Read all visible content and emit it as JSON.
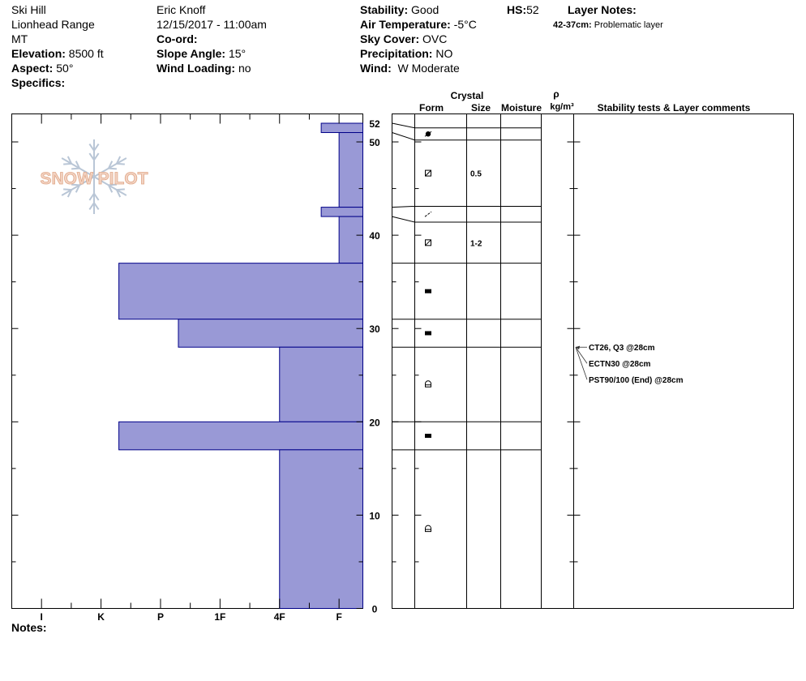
{
  "header": {
    "col1": {
      "location": "Ski Hill",
      "range": "Lionhead Range",
      "state": "MT",
      "elevation_label": "Elevation:",
      "elevation": "8500 ft",
      "aspect_label": "Aspect:",
      "aspect": "50°",
      "specifics_label": "Specifics:"
    },
    "col2": {
      "observer": "Eric Knoff",
      "datetime": "12/15/2017 - 11:00am",
      "coord_label": "Co-ord:",
      "slope_label": "Slope Angle:",
      "slope": "15°",
      "wind_loading_label": "Wind Loading:",
      "wind_loading": "no"
    },
    "col3": {
      "stability_label": "Stability:",
      "stability": "Good",
      "air_temp_label": "Air Temperature:",
      "air_temp": "-5°C",
      "sky_label": "Sky Cover:",
      "sky": "OVC",
      "precip_label": "Precipitation:",
      "precip": "NO",
      "wind_label": "Wind:",
      "wind": "W Moderate"
    },
    "hs_label": "HS:",
    "hs": "52",
    "layer_notes_label": "Layer Notes:",
    "layer_note_range": "42-37cm:",
    "layer_note_text": "Problematic layer"
  },
  "columns": {
    "crystal": "Crystal",
    "form": "Form",
    "size": "Size",
    "moisture": "Moisture",
    "rho": "ρ",
    "density_unit": "kg/m³",
    "stability_comments": "Stability tests & Layer comments"
  },
  "logo_text": "SNOW PILOT",
  "notes_label": "Notes:",
  "chart_data": {
    "type": "bar",
    "orientation": "horizontal",
    "hardness_scale": [
      "I",
      "K",
      "P",
      "1F",
      "4F",
      "F"
    ],
    "hardness_axis_range": [
      6.5,
      0.6
    ],
    "depth_axis_range": [
      0,
      53
    ],
    "depth_ticks": [
      0,
      10,
      20,
      30,
      40,
      50,
      52
    ],
    "bar_color": "#9999d6",
    "bar_edge_color": "#000088",
    "layers": [
      {
        "bottom": 51,
        "top": 52,
        "hardness": 1.3
      },
      {
        "bottom": 43,
        "top": 51,
        "hardness": 1.0
      },
      {
        "bottom": 42,
        "top": 43,
        "hardness": 1.3
      },
      {
        "bottom": 37,
        "top": 42,
        "hardness": 1.0
      },
      {
        "bottom": 31,
        "top": 37,
        "hardness": 4.7
      },
      {
        "bottom": 28,
        "top": 31,
        "hardness": 3.7
      },
      {
        "bottom": 20,
        "top": 28,
        "hardness": 2.0
      },
      {
        "bottom": 17,
        "top": 20,
        "hardness": 4.7
      },
      {
        "bottom": 0,
        "top": 17,
        "hardness": 2.0
      }
    ],
    "crystal_layers": [
      {
        "bottom": 50.2,
        "top": 51.5,
        "form": "graupel"
      },
      {
        "bottom": 43.1,
        "top": 50.2,
        "form": "faceted-rounded",
        "size": "0.5"
      },
      {
        "bottom": 41.4,
        "top": 43.1,
        "form": "surface-hoar-line"
      },
      {
        "bottom": 37.0,
        "top": 41.4,
        "form": "faceted-rounded",
        "size": "1-2"
      },
      {
        "bottom": 31.0,
        "top": 37.0,
        "form": "ice-crust"
      },
      {
        "bottom": 28.0,
        "top": 31.0,
        "form": "ice-crust"
      },
      {
        "bottom": 20.0,
        "top": 28.0,
        "form": "depth-hoar"
      },
      {
        "bottom": 17.0,
        "top": 20.0,
        "form": "ice-crust"
      },
      {
        "bottom": 0,
        "top": 17.0,
        "form": "depth-hoar"
      }
    ],
    "stability_tests": [
      {
        "label": "CT26, Q3 @28cm",
        "depth": 28
      },
      {
        "label": "ECTN30 @28cm",
        "depth": 28
      },
      {
        "label": "PST90/100 (End) @28cm",
        "depth": 28
      }
    ]
  }
}
